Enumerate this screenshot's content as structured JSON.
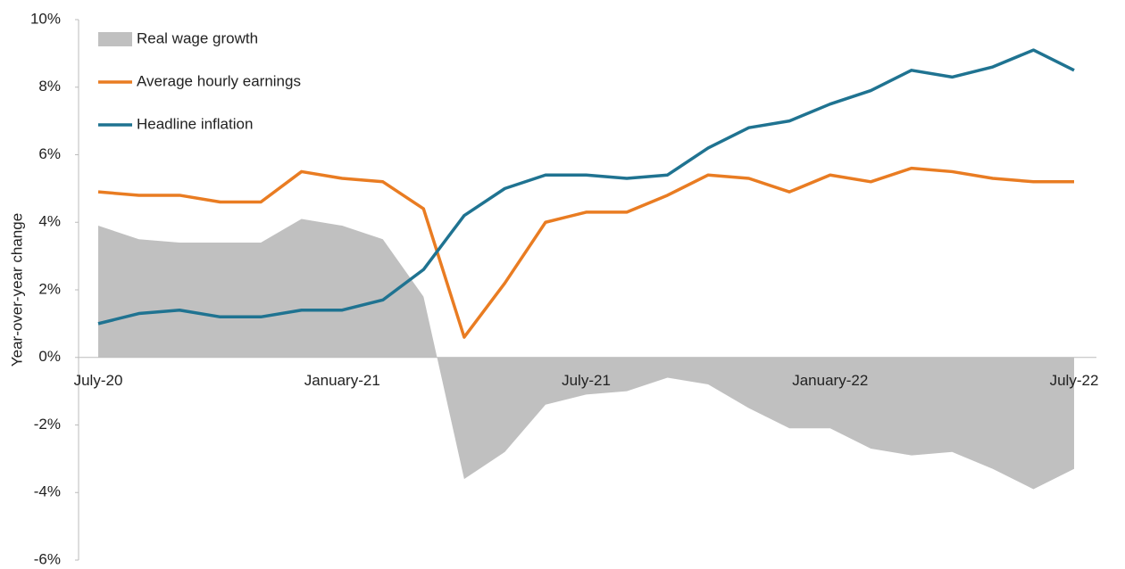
{
  "chart_data": {
    "type": "line",
    "y_label": "Year-over-year change",
    "categories": [
      "July-20",
      null,
      null,
      null,
      null,
      null,
      "January-21",
      null,
      null,
      null,
      null,
      null,
      "July-21",
      null,
      null,
      null,
      null,
      null,
      "January-22",
      null,
      null,
      null,
      null,
      null,
      "July-22"
    ],
    "series": [
      {
        "name": "Real wage growth",
        "type": "area",
        "color": "#c0c0c0",
        "values": [
          3.9,
          3.5,
          3.4,
          3.4,
          3.4,
          4.1,
          3.9,
          3.5,
          1.8,
          -3.6,
          -2.8,
          -1.4,
          -1.1,
          -1.0,
          -0.6,
          -0.8,
          -1.5,
          -2.1,
          -2.1,
          -2.7,
          -2.9,
          -2.8,
          -3.3,
          -3.9,
          -3.3
        ]
      },
      {
        "name": "Average hourly earnings",
        "type": "line",
        "color": "#e97c22",
        "values": [
          4.9,
          4.8,
          4.8,
          4.6,
          4.6,
          5.5,
          5.3,
          5.2,
          4.4,
          0.6,
          2.2,
          4.0,
          4.3,
          4.3,
          4.8,
          5.4,
          5.3,
          4.9,
          5.4,
          5.2,
          5.6,
          5.5,
          5.3,
          5.2,
          5.2
        ]
      },
      {
        "name": "Headline inflation",
        "type": "line",
        "color": "#1f7391",
        "values": [
          1.0,
          1.3,
          1.4,
          1.2,
          1.2,
          1.4,
          1.4,
          1.7,
          2.6,
          4.2,
          5.0,
          5.4,
          5.4,
          5.3,
          5.4,
          6.2,
          6.8,
          7.0,
          7.5,
          7.9,
          8.5,
          8.3,
          8.6,
          9.1,
          8.5
        ]
      }
    ],
    "ylim": [
      -6,
      10
    ],
    "yticks": [
      {
        "value": -6,
        "label": "-6%"
      },
      {
        "value": -4,
        "label": "-4%"
      },
      {
        "value": -2,
        "label": "-2%"
      },
      {
        "value": 0,
        "label": "0%"
      },
      {
        "value": 2,
        "label": "2%"
      },
      {
        "value": 4,
        "label": "4%"
      },
      {
        "value": 6,
        "label": "6%"
      },
      {
        "value": 8,
        "label": "8%"
      },
      {
        "value": 10,
        "label": "10%"
      }
    ],
    "legend": "top-left"
  }
}
